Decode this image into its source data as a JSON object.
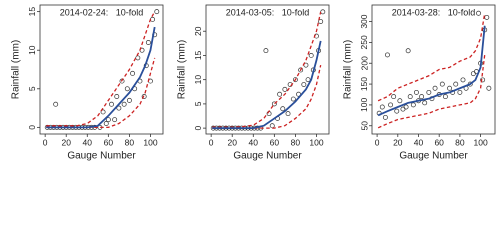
{
  "chart_data": [
    {
      "type": "scatter",
      "title": "2014-02-24:   10-fold",
      "xlabel": "Gauge Number",
      "ylabel": "Rainfall (mm)",
      "xlim": [
        -3,
        110
      ],
      "ylim": [
        -0.6,
        15.6
      ],
      "xticks": [
        0,
        20,
        40,
        60,
        80,
        100
      ],
      "yticks": [
        0,
        5,
        10,
        15
      ],
      "series": [
        {
          "style": "points",
          "color": "#333333",
          "x": [
            2,
            5,
            8,
            10,
            11,
            14,
            17,
            20,
            23,
            26,
            29,
            32,
            35,
            38,
            41,
            44,
            47,
            52,
            55,
            58,
            60,
            63,
            66,
            68,
            70,
            73,
            75,
            78,
            80,
            83,
            85,
            88,
            90,
            92,
            94,
            96,
            98,
            100,
            102,
            104,
            106
          ],
          "values": [
            0,
            0,
            0,
            3,
            0,
            0,
            0,
            0,
            0,
            0,
            0,
            0,
            0,
            0,
            0,
            0,
            0,
            0,
            2,
            0.5,
            1,
            3,
            1,
            4,
            2.5,
            6,
            3,
            5,
            3.5,
            7,
            5,
            9,
            6,
            10,
            4,
            8,
            11,
            6,
            14,
            12,
            15
          ]
        },
        {
          "style": "dashed",
          "color": "#cc2222",
          "x": [
            1,
            10,
            20,
            30,
            40,
            50,
            60,
            70,
            80,
            90,
            95,
            100,
            104
          ],
          "values": [
            0.2,
            0.2,
            0.2,
            0.2,
            0.5,
            1.5,
            3.5,
            5.5,
            7.5,
            10,
            12,
            14,
            15
          ]
        },
        {
          "style": "dashed",
          "color": "#cc2222",
          "x": [
            1,
            10,
            20,
            30,
            40,
            50,
            60,
            70,
            80,
            90,
            95,
            100,
            104
          ],
          "values": [
            0,
            0,
            0,
            0,
            0,
            0,
            0,
            0.5,
            1.5,
            3,
            4.5,
            7,
            9
          ]
        },
        {
          "style": "line",
          "color": "#2a4f9a",
          "x": [
            1,
            10,
            20,
            30,
            40,
            50,
            60,
            70,
            80,
            90,
            95,
            100,
            104
          ],
          "values": [
            0,
            0,
            0,
            0,
            0,
            0.2,
            1.5,
            3,
            4.5,
            6.5,
            8,
            10,
            13
          ]
        }
      ]
    },
    {
      "type": "scatter",
      "title": "2014-03-05:   10-fold",
      "xlabel": "Gauge Number",
      "ylabel": "Rainfall (mm)",
      "xlim": [
        -3,
        110
      ],
      "ylim": [
        -0.8,
        25
      ],
      "xticks": [
        0,
        20,
        40,
        60,
        80,
        100
      ],
      "yticks": [
        0,
        5,
        10,
        15,
        20
      ],
      "series": [
        {
          "style": "points",
          "color": "#333333",
          "x": [
            2,
            5,
            8,
            11,
            14,
            17,
            20,
            23,
            26,
            29,
            32,
            35,
            38,
            41,
            44,
            47,
            52,
            55,
            58,
            60,
            63,
            65,
            68,
            70,
            73,
            75,
            78,
            80,
            83,
            85,
            88,
            90,
            92,
            95,
            97,
            100,
            102,
            104,
            106
          ],
          "values": [
            0,
            0,
            0,
            0,
            0,
            0,
            0,
            0,
            0,
            0,
            0,
            0,
            0,
            0,
            0,
            0,
            16,
            3,
            0.5,
            5,
            2,
            7,
            4,
            8,
            3,
            9,
            6,
            10,
            7,
            12,
            9,
            13,
            10,
            15,
            12,
            19,
            16,
            22,
            24
          ]
        },
        {
          "style": "dashed",
          "color": "#cc2222",
          "x": [
            1,
            10,
            20,
            30,
            40,
            50,
            60,
            70,
            80,
            90,
            95,
            100,
            104
          ],
          "values": [
            0.2,
            0.2,
            0.2,
            0.3,
            0.6,
            2,
            5,
            7,
            10,
            14,
            17,
            20,
            24
          ]
        },
        {
          "style": "dashed",
          "color": "#cc2222",
          "x": [
            1,
            10,
            20,
            30,
            40,
            50,
            60,
            70,
            80,
            90,
            95,
            100,
            104
          ],
          "values": [
            0,
            0,
            0,
            0,
            0,
            0,
            0,
            0.5,
            2,
            4,
            6,
            9,
            13
          ]
        },
        {
          "style": "line",
          "color": "#2a4f9a",
          "x": [
            1,
            10,
            20,
            30,
            40,
            50,
            60,
            70,
            80,
            90,
            95,
            100,
            104
          ],
          "values": [
            0,
            0,
            0,
            0,
            0,
            0.5,
            2,
            3.5,
            5.5,
            8,
            10,
            14,
            18
          ]
        }
      ]
    },
    {
      "type": "scatter",
      "title": "2014-03-28:   10-fold",
      "xlabel": "Gauge Number",
      "ylabel": "Rainfall (mm)",
      "xlim": [
        -3,
        112
      ],
      "ylim": [
        35,
        335
      ],
      "xticks": [
        0,
        20,
        40,
        60,
        80,
        100
      ],
      "yticks": [
        50,
        100,
        150,
        200,
        250,
        300
      ],
      "series": [
        {
          "style": "points",
          "color": "#333333",
          "x": [
            2,
            5,
            8,
            10,
            13,
            16,
            19,
            22,
            25,
            28,
            30,
            32,
            35,
            38,
            40,
            43,
            46,
            50,
            53,
            56,
            60,
            63,
            66,
            70,
            73,
            76,
            80,
            83,
            86,
            90,
            93,
            96,
            98,
            100,
            102,
            104,
            106,
            108
          ],
          "values": [
            80,
            95,
            70,
            220,
            100,
            120,
            85,
            110,
            90,
            95,
            230,
            120,
            100,
            130,
            110,
            120,
            105,
            130,
            115,
            140,
            125,
            150,
            120,
            140,
            130,
            150,
            130,
            160,
            140,
            150,
            175,
            180,
            320,
            200,
            160,
            280,
            310,
            140
          ]
        },
        {
          "style": "dashed",
          "color": "#cc2222",
          "x": [
            1,
            10,
            20,
            30,
            40,
            50,
            60,
            70,
            80,
            90,
            95,
            100,
            104
          ],
          "values": [
            110,
            120,
            140,
            150,
            160,
            170,
            185,
            190,
            205,
            215,
            230,
            260,
            320
          ]
        },
        {
          "style": "dashed",
          "color": "#cc2222",
          "x": [
            1,
            10,
            20,
            30,
            40,
            50,
            60,
            70,
            80,
            90,
            95,
            100,
            104
          ],
          "values": [
            45,
            55,
            65,
            70,
            75,
            80,
            90,
            95,
            100,
            105,
            115,
            140,
            220
          ]
        },
        {
          "style": "line",
          "color": "#2a4f9a",
          "x": [
            1,
            10,
            20,
            30,
            40,
            50,
            60,
            70,
            80,
            90,
            95,
            100,
            104
          ],
          "values": [
            75,
            85,
            95,
            105,
            110,
            115,
            125,
            130,
            140,
            150,
            160,
            190,
            290
          ]
        }
      ]
    }
  ]
}
